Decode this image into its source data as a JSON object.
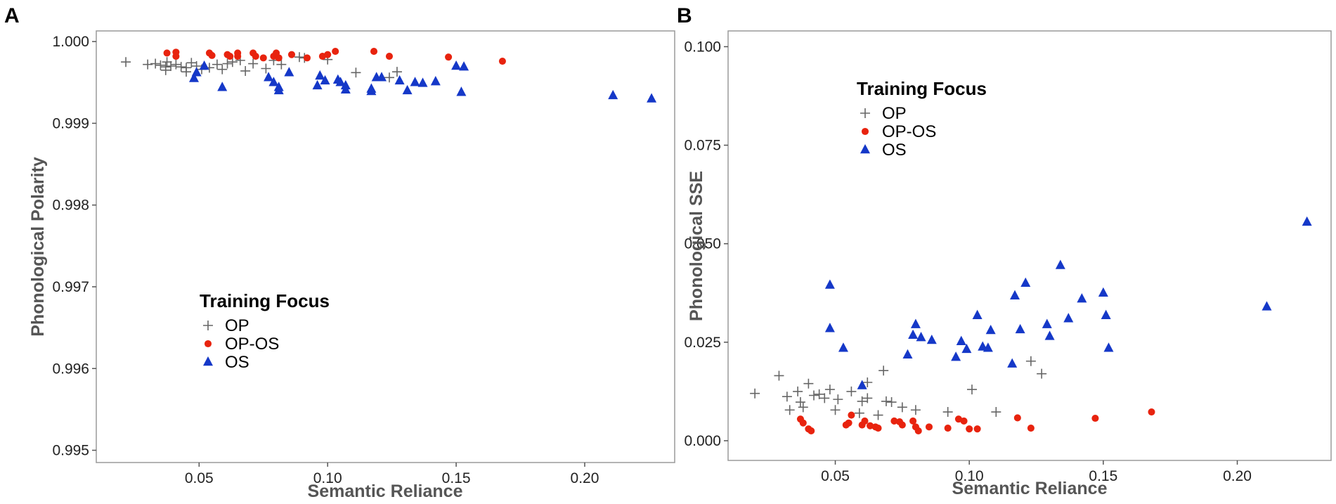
{
  "colors": {
    "OP": "#666666",
    "OP-OS": "#e8230e",
    "OS": "#1538c8",
    "axis": "#555555"
  },
  "chart_data": [
    {
      "panel": "A",
      "type": "scatter",
      "xlabel": "Semantic Reliance",
      "ylabel": "Phonological Polarity",
      "xlim": [
        0.01,
        0.235
      ],
      "ylim": [
        0.99485,
        1.00013
      ],
      "xticks": [
        0.05,
        0.1,
        0.15,
        0.2
      ],
      "xtick_labels": [
        "0.05",
        "0.10",
        "0.15",
        "0.20"
      ],
      "yticks": [
        0.995,
        0.996,
        0.997,
        0.998,
        0.999,
        1.0
      ],
      "ytick_labels": [
        "0.995",
        "0.996",
        "0.997",
        "0.998",
        "0.999",
        "1.000"
      ],
      "grid": false,
      "legend": {
        "title": "Training Focus",
        "position": "lower-left",
        "entries": [
          {
            "label": "OP",
            "series": "OP"
          },
          {
            "label": "OP-OS",
            "series": "OP-OS"
          },
          {
            "label": "OS",
            "series": "OS"
          }
        ]
      },
      "series": [
        {
          "name": "OP",
          "marker": "plus",
          "points": [
            [
              0.0215,
              0.99975
            ],
            [
              0.03,
              0.99972
            ],
            [
              0.033,
              0.99973
            ],
            [
              0.035,
              0.99971
            ],
            [
              0.037,
              0.99969
            ],
            [
              0.037,
              0.99965
            ],
            [
              0.0375,
              0.99975
            ],
            [
              0.039,
              0.9997
            ],
            [
              0.041,
              0.99972
            ],
            [
              0.043,
              0.99969
            ],
            [
              0.045,
              0.99968
            ],
            [
              0.045,
              0.99963
            ],
            [
              0.047,
              0.99974
            ],
            [
              0.049,
              0.9997
            ],
            [
              0.051,
              0.99966
            ],
            [
              0.054,
              0.99968
            ],
            [
              0.057,
              0.99972
            ],
            [
              0.059,
              0.99966
            ],
            [
              0.061,
              0.99973
            ],
            [
              0.063,
              0.99975
            ],
            [
              0.066,
              0.99977
            ],
            [
              0.068,
              0.99964
            ],
            [
              0.071,
              0.99973
            ],
            [
              0.076,
              0.99967
            ],
            [
              0.079,
              0.99977
            ],
            [
              0.082,
              0.99972
            ],
            [
              0.089,
              0.99981
            ],
            [
              0.091,
              0.9998
            ],
            [
              0.1,
              0.99978
            ],
            [
              0.111,
              0.99962
            ],
            [
              0.124,
              0.99956
            ],
            [
              0.127,
              0.99963
            ]
          ]
        },
        {
          "name": "OP-OS",
          "marker": "circle",
          "points": [
            [
              0.0375,
              0.99986
            ],
            [
              0.041,
              0.99987
            ],
            [
              0.041,
              0.99982
            ],
            [
              0.054,
              0.99986
            ],
            [
              0.055,
              0.99983
            ],
            [
              0.061,
              0.99984
            ],
            [
              0.062,
              0.99982
            ],
            [
              0.065,
              0.99982
            ],
            [
              0.065,
              0.99986
            ],
            [
              0.071,
              0.99986
            ],
            [
              0.072,
              0.99982
            ],
            [
              0.075,
              0.9998
            ],
            [
              0.079,
              0.99982
            ],
            [
              0.08,
              0.99986
            ],
            [
              0.081,
              0.9998
            ],
            [
              0.086,
              0.99984
            ],
            [
              0.092,
              0.9998
            ],
            [
              0.098,
              0.99982
            ],
            [
              0.1,
              0.99984
            ],
            [
              0.103,
              0.99988
            ],
            [
              0.118,
              0.99988
            ],
            [
              0.124,
              0.99982
            ],
            [
              0.147,
              0.99981
            ],
            [
              0.168,
              0.99976
            ]
          ]
        },
        {
          "name": "OS",
          "marker": "triangle",
          "points": [
            [
              0.048,
              0.99955
            ],
            [
              0.049,
              0.99962
            ],
            [
              0.052,
              0.9997
            ],
            [
              0.059,
              0.99944
            ],
            [
              0.077,
              0.99956
            ],
            [
              0.079,
              0.9995
            ],
            [
              0.081,
              0.99944
            ],
            [
              0.081,
              0.9994
            ],
            [
              0.085,
              0.99962
            ],
            [
              0.096,
              0.99946
            ],
            [
              0.097,
              0.99958
            ],
            [
              0.099,
              0.99952
            ],
            [
              0.104,
              0.99953
            ],
            [
              0.105,
              0.9995
            ],
            [
              0.107,
              0.99946
            ],
            [
              0.107,
              0.99941
            ],
            [
              0.117,
              0.99942
            ],
            [
              0.117,
              0.99939
            ],
            [
              0.119,
              0.99956
            ],
            [
              0.121,
              0.99956
            ],
            [
              0.128,
              0.99952
            ],
            [
              0.131,
              0.9994
            ],
            [
              0.134,
              0.9995
            ],
            [
              0.137,
              0.99949
            ],
            [
              0.142,
              0.99951
            ],
            [
              0.15,
              0.9997
            ],
            [
              0.152,
              0.99938
            ],
            [
              0.153,
              0.99969
            ],
            [
              0.211,
              0.99934
            ],
            [
              0.226,
              0.9993
            ]
          ]
        }
      ]
    },
    {
      "panel": "B",
      "type": "scatter",
      "xlabel": "Semantic Reliance",
      "ylabel": "Phonological SSE",
      "xlim": [
        0.01,
        0.235
      ],
      "ylim": [
        -0.005,
        0.104
      ],
      "xticks": [
        0.05,
        0.1,
        0.15,
        0.2
      ],
      "xtick_labels": [
        "0.05",
        "0.10",
        "0.15",
        "0.20"
      ],
      "yticks": [
        0.0,
        0.025,
        0.05,
        0.075,
        0.1
      ],
      "ytick_labels": [
        "0.000",
        "0.025",
        "0.050",
        "0.075",
        "0.100"
      ],
      "grid": false,
      "legend": {
        "title": "Training Focus",
        "position": "top-left",
        "entries": [
          {
            "label": "OP",
            "series": "OP"
          },
          {
            "label": "OP-OS",
            "series": "OP-OS"
          },
          {
            "label": "OS",
            "series": "OS"
          }
        ]
      },
      "series": [
        {
          "name": "OP",
          "marker": "plus",
          "points": [
            [
              0.02,
              0.012
            ],
            [
              0.029,
              0.0165
            ],
            [
              0.032,
              0.0112
            ],
            [
              0.033,
              0.0078
            ],
            [
              0.036,
              0.0125
            ],
            [
              0.037,
              0.0098
            ],
            [
              0.038,
              0.0085
            ],
            [
              0.04,
              0.0145
            ],
            [
              0.042,
              0.0115
            ],
            [
              0.044,
              0.0118
            ],
            [
              0.046,
              0.0108
            ],
            [
              0.048,
              0.013
            ],
            [
              0.05,
              0.0078
            ],
            [
              0.051,
              0.0105
            ],
            [
              0.056,
              0.0125
            ],
            [
              0.059,
              0.007
            ],
            [
              0.06,
              0.01
            ],
            [
              0.062,
              0.0148
            ],
            [
              0.062,
              0.0108
            ],
            [
              0.066,
              0.0065
            ],
            [
              0.068,
              0.0178
            ],
            [
              0.069,
              0.01
            ],
            [
              0.071,
              0.0098
            ],
            [
              0.075,
              0.0085
            ],
            [
              0.08,
              0.0078
            ],
            [
              0.092,
              0.0073
            ],
            [
              0.101,
              0.013
            ],
            [
              0.11,
              0.0073
            ],
            [
              0.123,
              0.0202
            ],
            [
              0.127,
              0.017
            ]
          ]
        },
        {
          "name": "OP-OS",
          "marker": "circle",
          "points": [
            [
              0.037,
              0.0055
            ],
            [
              0.038,
              0.0045
            ],
            [
              0.04,
              0.003
            ],
            [
              0.041,
              0.0025
            ],
            [
              0.054,
              0.004
            ],
            [
              0.055,
              0.0045
            ],
            [
              0.056,
              0.0065
            ],
            [
              0.06,
              0.004
            ],
            [
              0.061,
              0.005
            ],
            [
              0.063,
              0.0038
            ],
            [
              0.065,
              0.0035
            ],
            [
              0.066,
              0.0032
            ],
            [
              0.072,
              0.005
            ],
            [
              0.074,
              0.0048
            ],
            [
              0.075,
              0.004
            ],
            [
              0.079,
              0.005
            ],
            [
              0.08,
              0.0035
            ],
            [
              0.081,
              0.0025
            ],
            [
              0.085,
              0.0035
            ],
            [
              0.092,
              0.0032
            ],
            [
              0.096,
              0.0055
            ],
            [
              0.098,
              0.005
            ],
            [
              0.1,
              0.003
            ],
            [
              0.103,
              0.003
            ],
            [
              0.118,
              0.0058
            ],
            [
              0.123,
              0.0032
            ],
            [
              0.147,
              0.0057
            ],
            [
              0.168,
              0.0073
            ]
          ]
        },
        {
          "name": "OS",
          "marker": "triangle",
          "points": [
            [
              0.048,
              0.0395
            ],
            [
              0.048,
              0.0285
            ],
            [
              0.053,
              0.0235
            ],
            [
              0.06,
              0.014
            ],
            [
              0.077,
              0.0218
            ],
            [
              0.079,
              0.0268
            ],
            [
              0.08,
              0.0295
            ],
            [
              0.082,
              0.0262
            ],
            [
              0.086,
              0.0255
            ],
            [
              0.095,
              0.0212
            ],
            [
              0.097,
              0.0252
            ],
            [
              0.099,
              0.0232
            ],
            [
              0.103,
              0.0318
            ],
            [
              0.105,
              0.0238
            ],
            [
              0.107,
              0.0235
            ],
            [
              0.108,
              0.028
            ],
            [
              0.116,
              0.0195
            ],
            [
              0.117,
              0.0368
            ],
            [
              0.119,
              0.0282
            ],
            [
              0.121,
              0.04
            ],
            [
              0.129,
              0.0295
            ],
            [
              0.13,
              0.0265
            ],
            [
              0.134,
              0.0445
            ],
            [
              0.137,
              0.031
            ],
            [
              0.142,
              0.036
            ],
            [
              0.15,
              0.0375
            ],
            [
              0.151,
              0.0318
            ],
            [
              0.152,
              0.0235
            ],
            [
              0.211,
              0.034
            ],
            [
              0.226,
              0.0555
            ]
          ]
        }
      ]
    }
  ]
}
